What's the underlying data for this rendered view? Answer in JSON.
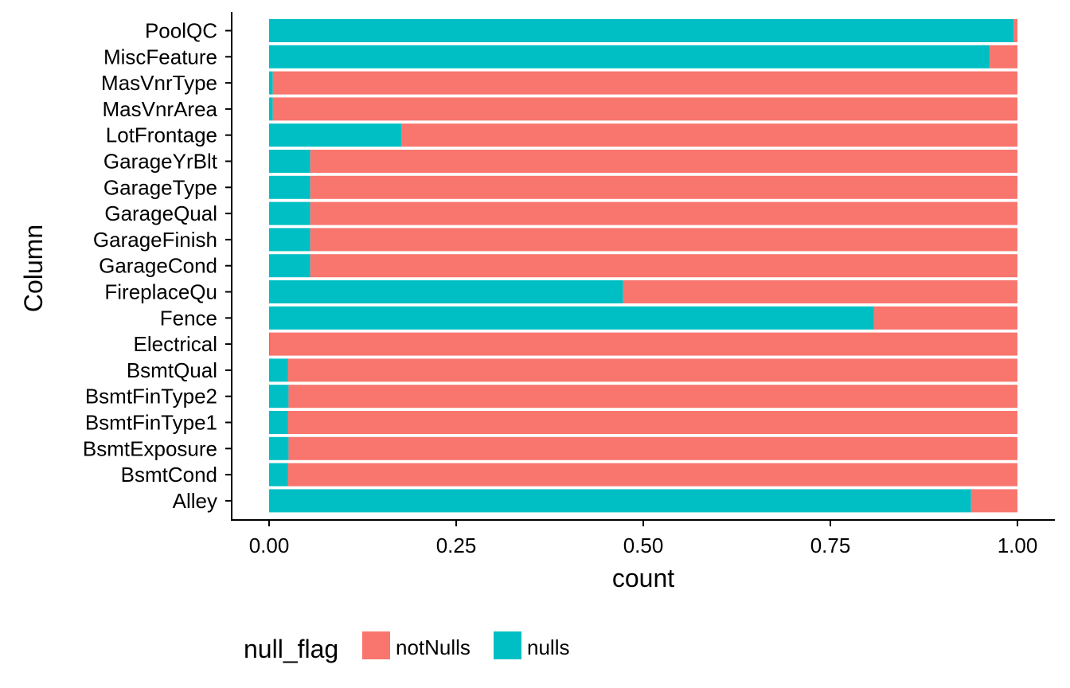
{
  "chart_data": {
    "type": "bar",
    "orientation": "horizontal",
    "stacked": "fill",
    "xlabel": "count",
    "ylabel": "Column",
    "xlim": [
      0,
      1
    ],
    "x_ticks": [
      "0.00",
      "0.25",
      "0.50",
      "0.75",
      "1.00"
    ],
    "x_tick_values": [
      0,
      0.25,
      0.5,
      0.75,
      1.0
    ],
    "grid": false,
    "categories": [
      "PoolQC",
      "MiscFeature",
      "MasVnrType",
      "MasVnrArea",
      "LotFrontage",
      "GarageYrBlt",
      "GarageType",
      "GarageQual",
      "GarageFinish",
      "GarageCond",
      "FireplaceQu",
      "Fence",
      "Electrical",
      "BsmtQual",
      "BsmtFinType2",
      "BsmtFinType1",
      "BsmtExposure",
      "BsmtCond",
      "Alley"
    ],
    "series": [
      {
        "name": "nulls",
        "color": "#00BFC4",
        "values": [
          0.995,
          0.963,
          0.005,
          0.005,
          0.177,
          0.055,
          0.055,
          0.055,
          0.055,
          0.055,
          0.473,
          0.808,
          0.001,
          0.025,
          0.026,
          0.025,
          0.026,
          0.025,
          0.938
        ]
      },
      {
        "name": "notNulls",
        "color": "#F8766D",
        "values": [
          0.005,
          0.037,
          0.995,
          0.995,
          0.823,
          0.945,
          0.945,
          0.945,
          0.945,
          0.945,
          0.527,
          0.192,
          0.999,
          0.975,
          0.974,
          0.975,
          0.974,
          0.975,
          0.062
        ]
      }
    ],
    "legend": {
      "title": "null_flag",
      "position": "bottom-left",
      "items": [
        {
          "label": "notNulls",
          "color": "#F8766D"
        },
        {
          "label": "nulls",
          "color": "#00BFC4"
        }
      ]
    }
  }
}
